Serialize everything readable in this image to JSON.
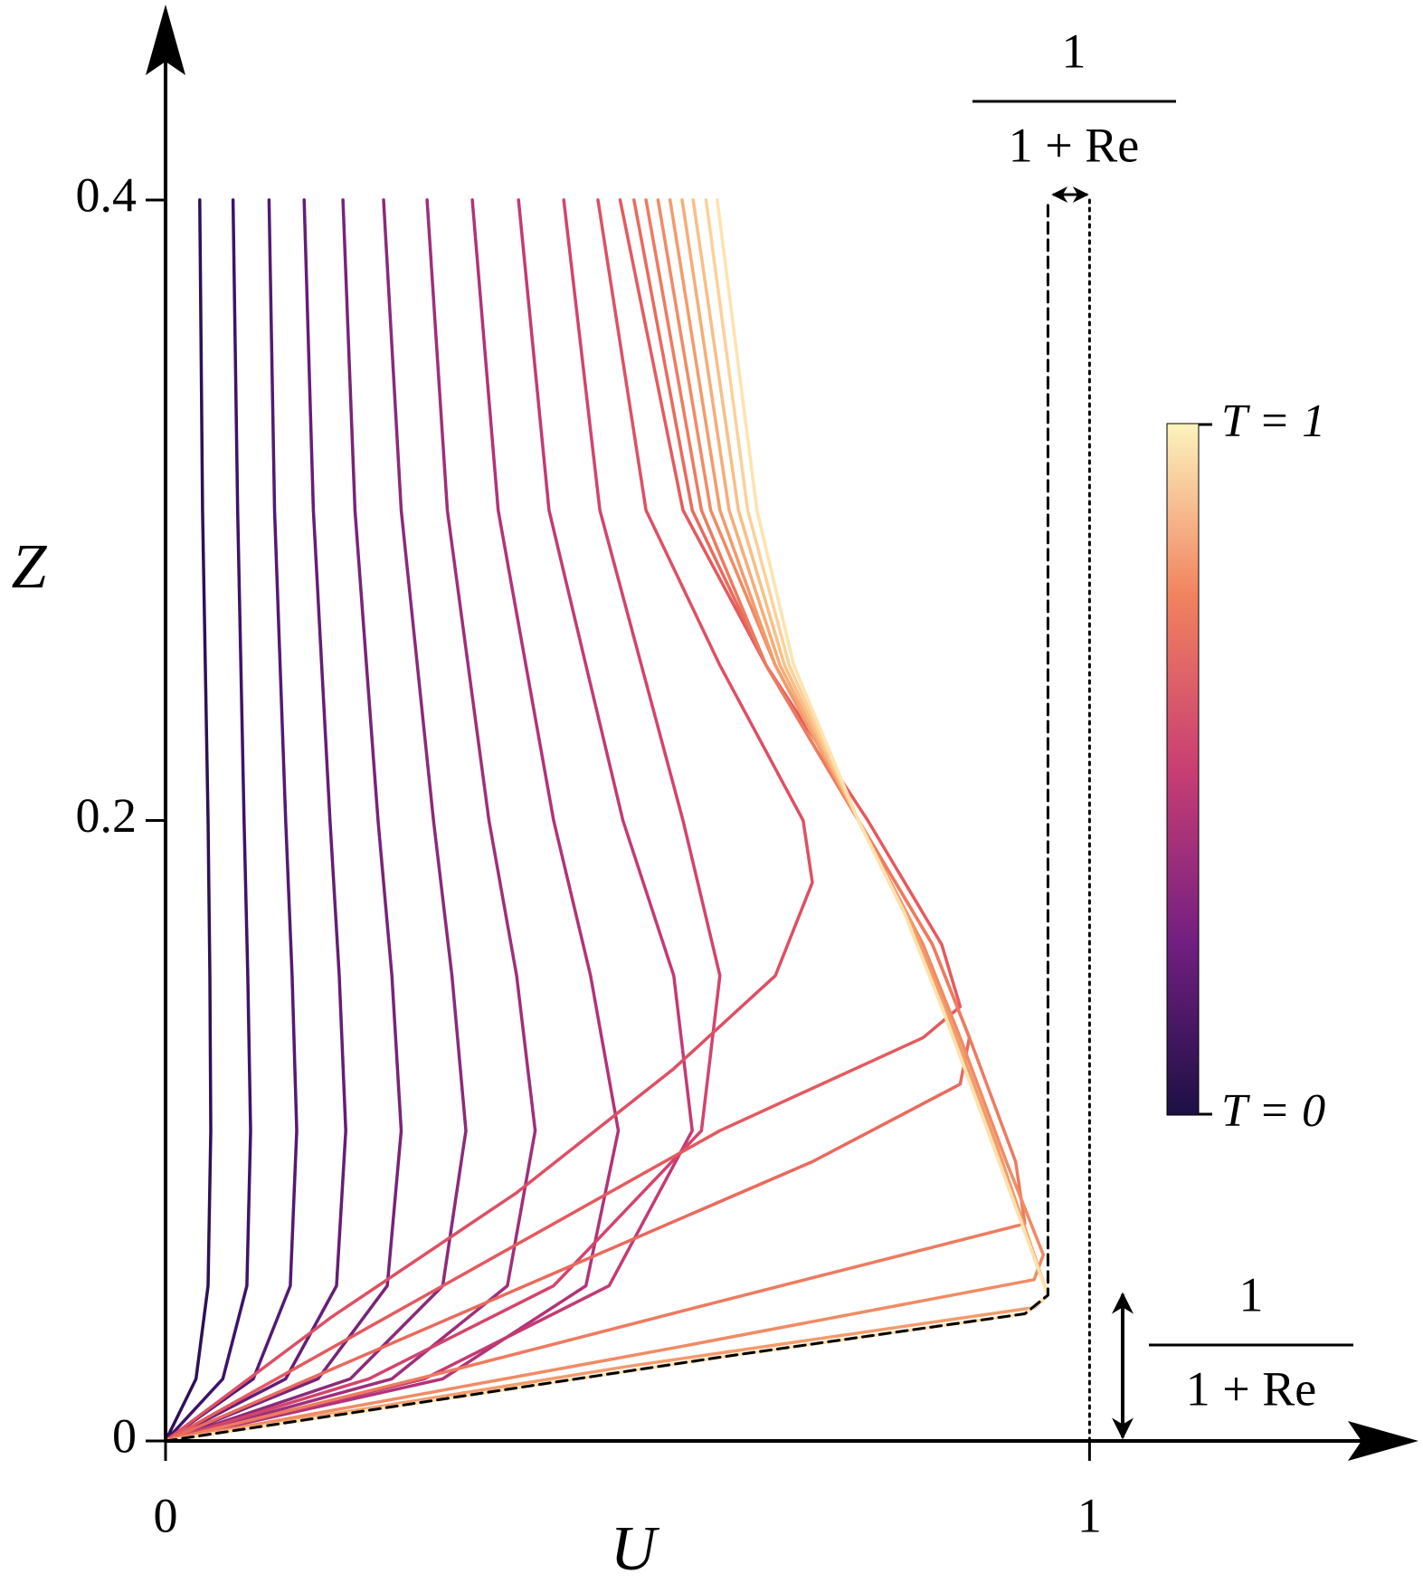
{
  "chart_data": {
    "type": "line",
    "x_label": "U",
    "y_label": "Z",
    "xlim": [
      0,
      1.356
    ],
    "ylim": [
      0,
      0.463
    ],
    "xticks": [
      0,
      1
    ],
    "yticks": [
      0,
      0.2,
      0.4
    ],
    "series": [
      {
        "color": "#2d1155",
        "x": [
          0.037,
          0.04,
          0.046,
          0.048,
          0.049,
          0.046,
          0.033,
          0
        ],
        "values": [
          0.4,
          0.3,
          0.2,
          0.15,
          0.1,
          0.05,
          0.02,
          0
        ]
      },
      {
        "color": "#3f1368",
        "x": [
          0.073,
          0.078,
          0.085,
          0.089,
          0.092,
          0.088,
          0.062,
          0
        ],
        "values": [
          0.4,
          0.3,
          0.2,
          0.15,
          0.1,
          0.05,
          0.02,
          0
        ]
      },
      {
        "color": "#541a71",
        "x": [
          0.112,
          0.118,
          0.13,
          0.137,
          0.142,
          0.135,
          0.095,
          0
        ],
        "values": [
          0.4,
          0.3,
          0.2,
          0.15,
          0.1,
          0.05,
          0.02,
          0
        ]
      },
      {
        "color": "#651e76",
        "x": [
          0.15,
          0.16,
          0.178,
          0.188,
          0.195,
          0.185,
          0.13,
          0
        ],
        "values": [
          0.4,
          0.3,
          0.2,
          0.15,
          0.1,
          0.05,
          0.02,
          0
        ]
      },
      {
        "color": "#782478",
        "x": [
          0.192,
          0.205,
          0.23,
          0.245,
          0.255,
          0.24,
          0.165,
          0
        ],
        "values": [
          0.4,
          0.3,
          0.2,
          0.15,
          0.1,
          0.05,
          0.02,
          0
        ]
      },
      {
        "color": "#8b2a7a",
        "x": [
          0.236,
          0.255,
          0.29,
          0.31,
          0.325,
          0.3,
          0.2,
          0
        ],
        "values": [
          0.4,
          0.3,
          0.2,
          0.15,
          0.1,
          0.05,
          0.02,
          0
        ]
      },
      {
        "color": "#9f2f7a",
        "x": [
          0.283,
          0.305,
          0.35,
          0.38,
          0.4,
          0.37,
          0.245,
          0
        ],
        "values": [
          0.4,
          0.3,
          0.2,
          0.15,
          0.1,
          0.05,
          0.02,
          0
        ]
      },
      {
        "color": "#b23377",
        "x": [
          0.332,
          0.36,
          0.42,
          0.46,
          0.49,
          0.455,
          0.3,
          0
        ],
        "values": [
          0.4,
          0.3,
          0.2,
          0.15,
          0.1,
          0.05,
          0.02,
          0
        ]
      },
      {
        "color": "#c33b73",
        "x": [
          0.382,
          0.415,
          0.495,
          0.55,
          0.57,
          0.48,
          0.28,
          0
        ],
        "values": [
          0.4,
          0.3,
          0.2,
          0.15,
          0.1,
          0.05,
          0.02,
          0
        ]
      },
      {
        "color": "#d2446c",
        "x": [
          0.431,
          0.47,
          0.56,
          0.6,
          0.58,
          0.42,
          0.22,
          0
        ],
        "values": [
          0.4,
          0.3,
          0.2,
          0.15,
          0.1,
          0.05,
          0.02,
          0
        ]
      },
      {
        "color": "#dd5065",
        "x": [
          0.468,
          0.52,
          0.6,
          0.69,
          0.7,
          0.66,
          0.55,
          0.38,
          0.18,
          0
        ],
        "values": [
          0.4,
          0.3,
          0.25,
          0.2,
          0.18,
          0.15,
          0.12,
          0.08,
          0.04,
          0
        ]
      },
      {
        "color": "#e45a5e",
        "x": [
          0.492,
          0.56,
          0.65,
          0.76,
          0.84,
          0.86,
          0.82,
          0.6,
          0.3,
          0
        ],
        "values": [
          0.4,
          0.3,
          0.25,
          0.2,
          0.16,
          0.14,
          0.13,
          0.1,
          0.05,
          0
        ]
      },
      {
        "color": "#e96a5c",
        "x": [
          0.507,
          0.57,
          0.65,
          0.75,
          0.83,
          0.87,
          0.86,
          0.7,
          0.35,
          0
        ],
        "values": [
          0.4,
          0.3,
          0.25,
          0.2,
          0.16,
          0.13,
          0.115,
          0.09,
          0.045,
          0
        ]
      },
      {
        "color": "#ed7b5f",
        "x": [
          0.52,
          0.58,
          0.65,
          0.75,
          0.83,
          0.87,
          0.92,
          0.93,
          0.6,
          0.3,
          0
        ],
        "values": [
          0.4,
          0.3,
          0.25,
          0.2,
          0.16,
          0.13,
          0.09,
          0.07,
          0.045,
          0.022,
          0
        ]
      },
      {
        "color": "#f08b64",
        "x": [
          0.533,
          0.59,
          0.66,
          0.75,
          0.82,
          0.86,
          0.91,
          0.95,
          0.94,
          0.55,
          0
        ],
        "values": [
          0.4,
          0.3,
          0.25,
          0.2,
          0.16,
          0.13,
          0.09,
          0.06,
          0.052,
          0.03,
          0
        ]
      },
      {
        "color": "#f39b6b",
        "x": [
          0.546,
          0.6,
          0.66,
          0.75,
          0.81,
          0.85,
          0.9,
          0.955,
          0.94,
          0.5,
          0
        ],
        "values": [
          0.4,
          0.3,
          0.25,
          0.2,
          0.165,
          0.135,
          0.095,
          0.047,
          0.043,
          0.024,
          0
        ]
      },
      {
        "color": "#f6ad77",
        "x": [
          0.559,
          0.61,
          0.665,
          0.75,
          0.8,
          0.84,
          0.89,
          0.955,
          0.93,
          0.6,
          0
        ],
        "values": [
          0.4,
          0.3,
          0.25,
          0.2,
          0.17,
          0.14,
          0.1,
          0.047,
          0.041,
          0.027,
          0
        ]
      },
      {
        "color": "#f8bf86",
        "x": [
          0.571,
          0.62,
          0.67,
          0.75,
          0.8,
          0.84,
          0.89,
          0.955,
          0.93,
          0.6,
          0
        ],
        "values": [
          0.4,
          0.3,
          0.25,
          0.2,
          0.17,
          0.14,
          0.1,
          0.047,
          0.041,
          0.027,
          0
        ]
      },
      {
        "color": "#fbd199",
        "x": [
          0.585,
          0.63,
          0.675,
          0.75,
          0.8,
          0.84,
          0.89,
          0.955,
          0.93,
          0.6,
          0
        ],
        "values": [
          0.4,
          0.3,
          0.25,
          0.2,
          0.17,
          0.14,
          0.1,
          0.047,
          0.041,
          0.027,
          0
        ]
      },
      {
        "color": "#fde3ad",
        "x": [
          0.597,
          0.64,
          0.68,
          0.75,
          0.8,
          0.84,
          0.89,
          0.955,
          0.93,
          0.6,
          0
        ],
        "values": [
          0.4,
          0.3,
          0.25,
          0.2,
          0.17,
          0.14,
          0.1,
          0.047,
          0.041,
          0.027,
          0
        ]
      },
      {
        "color": "#000000",
        "linestyle": "dashed",
        "x": [
          0,
          0.6,
          0.93,
          0.955,
          0.955
        ],
        "values": [
          0,
          0.027,
          0.041,
          0.047,
          0.4
        ]
      },
      {
        "color": "#000000",
        "linestyle": "dotted",
        "x": [
          1,
          1
        ],
        "values": [
          0,
          0.4
        ]
      }
    ],
    "annotations": [
      {
        "numerator": "1",
        "denominator": "1 + Re"
      },
      {
        "numerator": "1",
        "denominator": "1 + Re"
      }
    ],
    "colorbar": {
      "top_label": "T = 1",
      "bottom_label": "T = 0"
    }
  }
}
